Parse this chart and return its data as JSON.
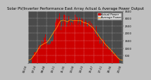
{
  "title": "Solar PV/Inverter Performance East Array Actual & Average Power Output",
  "title_fontsize": 3.8,
  "background_color": "#c0c0c0",
  "plot_bg_color": "#4a4a4a",
  "grid_color": "#ffffff",
  "bar_color": "#cc0000",
  "avg_line_color": "#ff8800",
  "ylabel_fontsize": 3.0,
  "xlabel_fontsize": 2.8,
  "tick_fontsize": 2.8,
  "legend_fontsize": 2.8,
  "n_bars": 144,
  "ylim": [
    0,
    3500
  ],
  "y_ticks": [
    500,
    1000,
    1500,
    2000,
    2500,
    3000,
    3500
  ],
  "ylabel": "W",
  "legend_labels": [
    "Actual Power",
    "Average Power"
  ],
  "legend_colors": [
    "#cc0000",
    "#ff8800"
  ]
}
